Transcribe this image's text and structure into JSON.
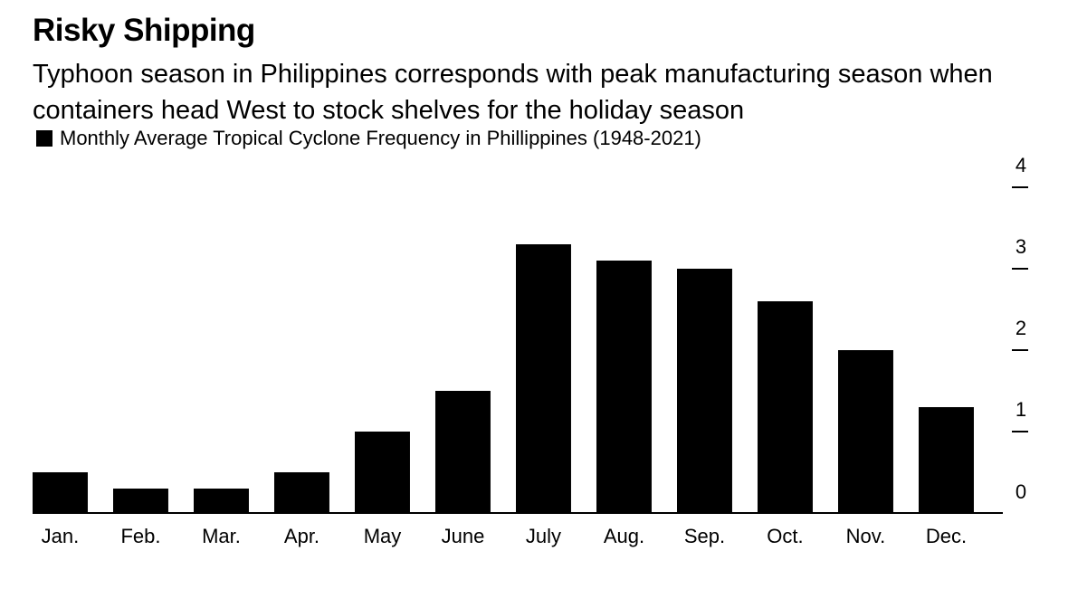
{
  "title": "Risky Shipping",
  "subtitle": "Typhoon season in Philippines corresponds with peak manufacturing season when containers head West to stock shelves for the holiday season",
  "chart_data": {
    "type": "bar",
    "categories": [
      "Jan.",
      "Feb.",
      "Mar.",
      "Apr.",
      "May",
      "June",
      "July",
      "Aug.",
      "Sep.",
      "Oct.",
      "Nov.",
      "Dec."
    ],
    "series": [
      {
        "name": "Monthly Average Tropical Cyclone Frequency in Phillippines (1948-2021)",
        "values": [
          0.5,
          0.3,
          0.3,
          0.5,
          1.0,
          1.5,
          3.3,
          3.1,
          3.0,
          2.6,
          2.0,
          1.3
        ],
        "color": "#000000"
      }
    ],
    "y_ticks": [
      0,
      1,
      2,
      3,
      4
    ],
    "ylim": [
      0,
      4
    ],
    "y_axis_side": "right",
    "grid": false,
    "legend_position": "top-left"
  }
}
